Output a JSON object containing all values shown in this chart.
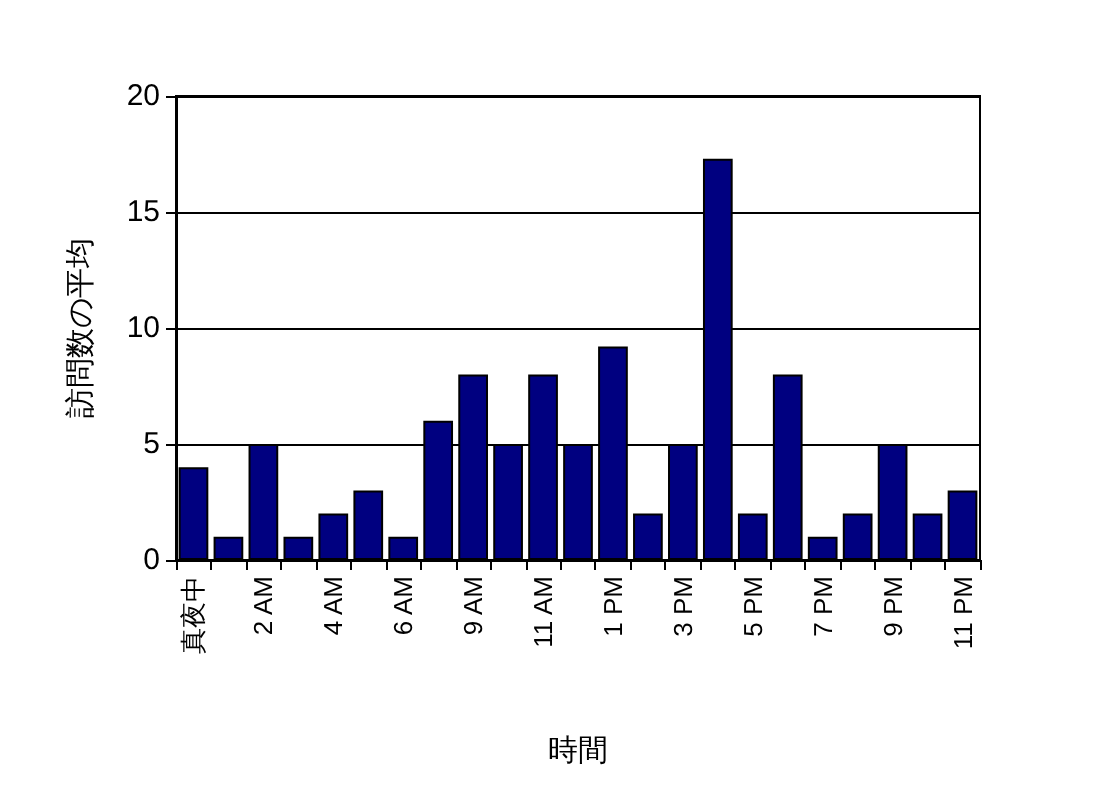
{
  "chart_data": {
    "type": "bar",
    "xlabel": "時間",
    "ylabel": "訪問数の平均",
    "categories": [
      "真夜中",
      null,
      "2 AM",
      null,
      "4 AM",
      null,
      "6 AM",
      null,
      "9 AM",
      null,
      "11 AM",
      null,
      "1 PM",
      null,
      "3 PM",
      null,
      "5 PM",
      null,
      "7 PM",
      null,
      "9 PM",
      null,
      "11 PM"
    ],
    "values": [
      4,
      1,
      5,
      1,
      2,
      3,
      1,
      6,
      8,
      5,
      8,
      5,
      9.2,
      2,
      5,
      17.3,
      2,
      8,
      1,
      2,
      5,
      2,
      3
    ],
    "color": "#000080",
    "ylim": [
      0,
      20
    ],
    "yticks": [
      0,
      5,
      10,
      15,
      20
    ],
    "grid": "y"
  }
}
